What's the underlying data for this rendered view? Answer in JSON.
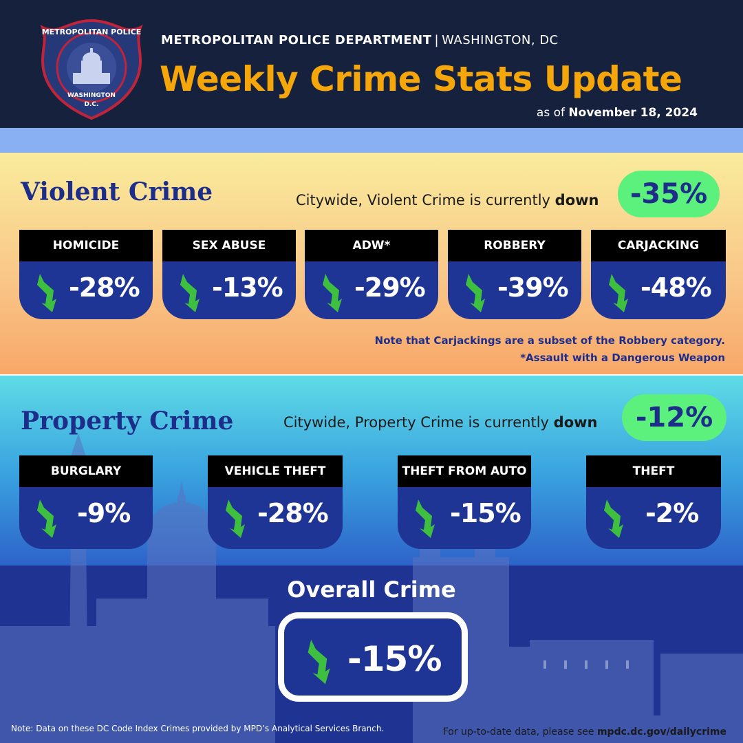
{
  "header": {
    "badge_text_top": "METROPOLITAN POLICE",
    "badge_text_bottom_1": "WASHINGTON",
    "badge_text_bottom_2": "D.C.",
    "org": "METROPOLITAN POLICE DEPARTMENT",
    "separator": "|",
    "city": "WASHINGTON, DC",
    "title": "Weekly Crime Stats Update",
    "as_of_prefix": "as of",
    "as_of_date": "November 18, 2024"
  },
  "violent": {
    "title": "Violent Crime",
    "citywide_prefix": "Citywide, Violent Crime is currently",
    "citywide_word": "down",
    "change": "-35%",
    "cards": [
      {
        "label": "HOMICIDE",
        "value": "-28%"
      },
      {
        "label": "SEX ABUSE",
        "value": "-13%"
      },
      {
        "label": "ADW*",
        "value": "-29%"
      },
      {
        "label": "ROBBERY",
        "value": "-39%"
      },
      {
        "label": "CARJACKING",
        "value": "-48%"
      }
    ],
    "note_1": "Note that Carjackings are a subset of the Robbery category.",
    "note_2": "*Assault with a Dangerous Weapon"
  },
  "property": {
    "title": "Property Crime",
    "citywide_prefix": "Citywide, Property Crime is currently",
    "citywide_word": "down",
    "change": "-12%",
    "cards": [
      {
        "label": "BURGLARY",
        "value": "-9%"
      },
      {
        "label": "VEHICLE THEFT",
        "value": "-28%"
      },
      {
        "label": "THEFT FROM AUTO",
        "value": "-15%"
      },
      {
        "label": "THEFT",
        "value": "-2%"
      }
    ]
  },
  "overall": {
    "title": "Overall Crime",
    "value": "-15%"
  },
  "footer": {
    "note": "Note: Data on these DC Code Index Crimes provided by MPD’s Analytical Services Branch.",
    "link_prefix": "For up-to-date data, please see",
    "link": "mpdc.dc.gov/dailycrime"
  },
  "colors": {
    "title_orange": "#f5a60a",
    "navy": "#1d2d8a",
    "card_blue": "#1f3596",
    "pill_green": "#5cf07d",
    "arrow_green": "#3fbf3f"
  },
  "icons": [
    "police-badge-icon",
    "trend-down-arrow-icon"
  ]
}
